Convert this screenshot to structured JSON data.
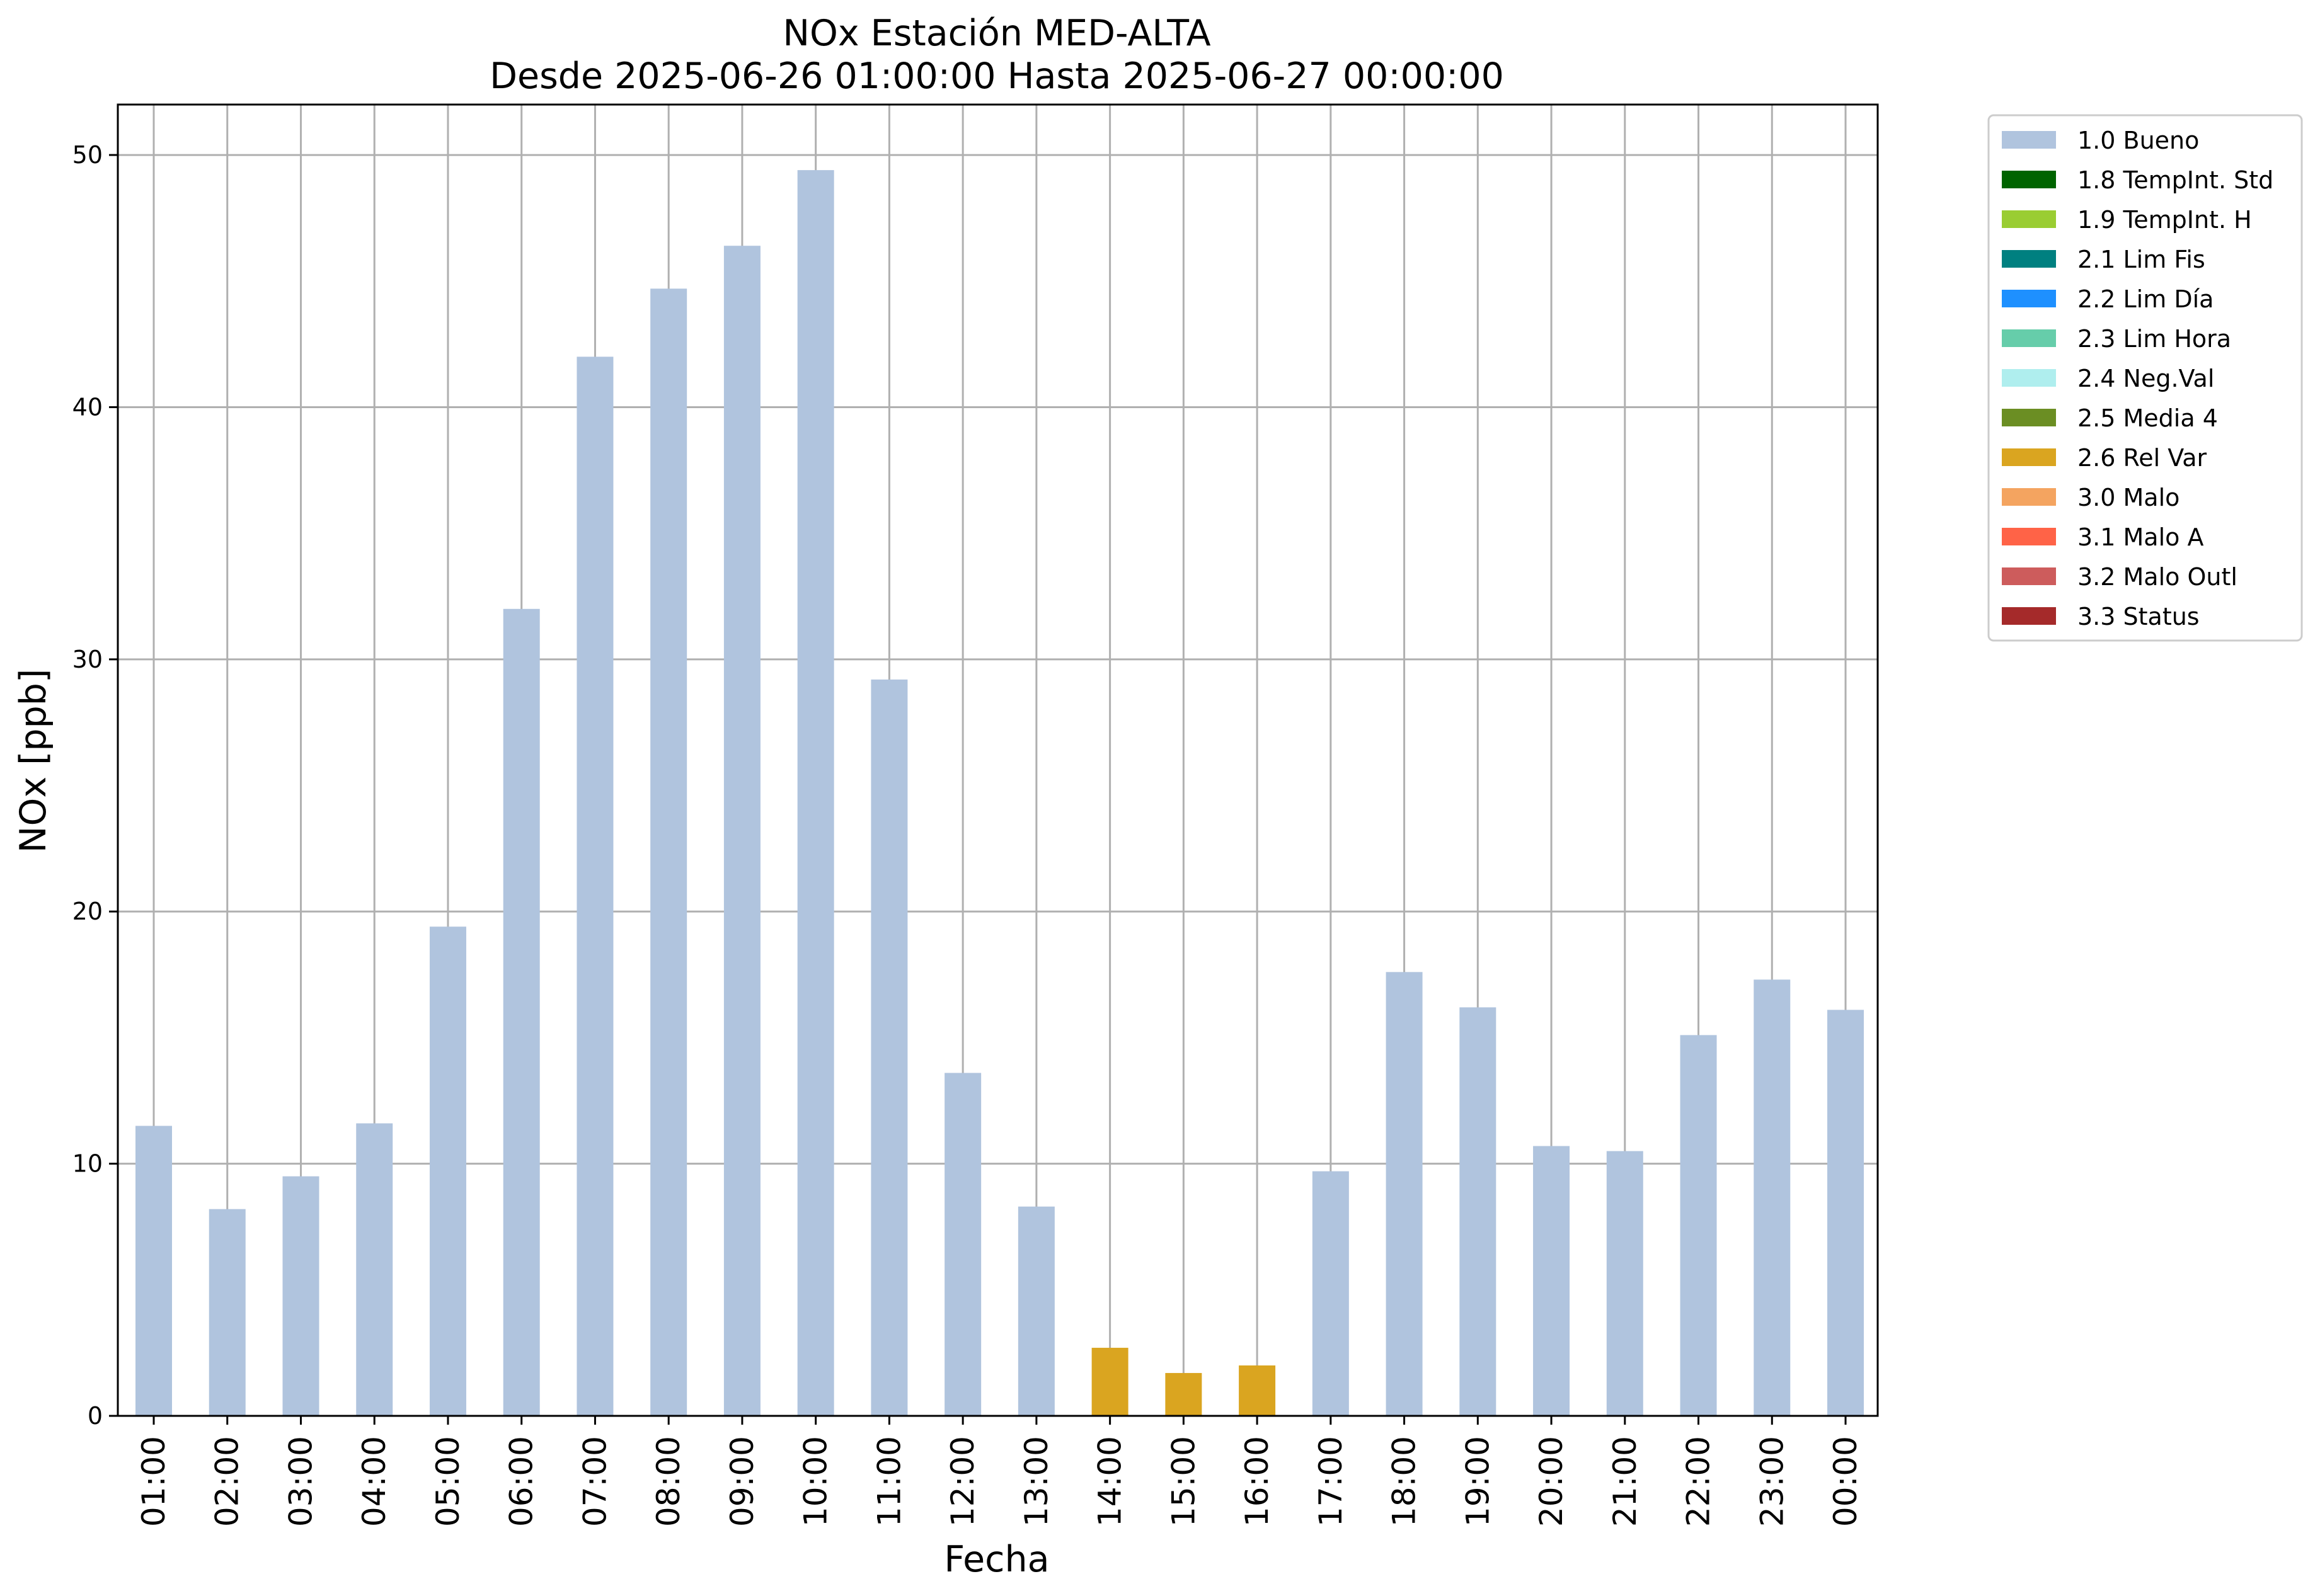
{
  "chart_data": {
    "type": "bar",
    "title": "NOx Estación MED-ALTA",
    "subtitle": "Desde 2025-06-26 01:00:00 Hasta 2025-06-27 00:00:00",
    "xlabel": "Fecha",
    "ylabel": "NOx [ppb]",
    "ylim": [
      0,
      52
    ],
    "yticks": [
      0,
      10,
      20,
      30,
      40,
      50
    ],
    "grid": true,
    "legend_position": "outside-top-right",
    "categories": [
      "01:00",
      "02:00",
      "03:00",
      "04:00",
      "05:00",
      "06:00",
      "07:00",
      "08:00",
      "09:00",
      "10:00",
      "11:00",
      "12:00",
      "13:00",
      "14:00",
      "15:00",
      "16:00",
      "17:00",
      "18:00",
      "19:00",
      "20:00",
      "21:00",
      "22:00",
      "23:00",
      "00:00"
    ],
    "values": [
      11.5,
      8.2,
      9.5,
      11.6,
      19.4,
      32.0,
      42.0,
      44.7,
      46.4,
      49.4,
      29.2,
      13.6,
      8.3,
      2.7,
      1.7,
      2.0,
      9.7,
      17.6,
      16.2,
      10.7,
      10.5,
      15.1,
      17.3,
      16.1
    ],
    "flags": [
      "1.0 Bueno",
      "1.0 Bueno",
      "1.0 Bueno",
      "1.0 Bueno",
      "1.0 Bueno",
      "1.0 Bueno",
      "1.0 Bueno",
      "1.0 Bueno",
      "1.0 Bueno",
      "1.0 Bueno",
      "1.0 Bueno",
      "1.0 Bueno",
      "1.0 Bueno",
      "2.6 Rel Var",
      "2.6 Rel Var",
      "2.6 Rel Var",
      "1.0 Bueno",
      "1.0 Bueno",
      "1.0 Bueno",
      "1.0 Bueno",
      "1.0 Bueno",
      "1.0 Bueno",
      "1.0 Bueno",
      "1.0 Bueno"
    ],
    "legend": [
      {
        "label": "1.0 Bueno",
        "color": "#b0c4de"
      },
      {
        "label": "1.8 TempInt. Std",
        "color": "#006400"
      },
      {
        "label": "1.9 TempInt. H",
        "color": "#9acd32"
      },
      {
        "label": "2.1 Lim Fis",
        "color": "#008080"
      },
      {
        "label": "2.2 Lim Día",
        "color": "#1e90ff"
      },
      {
        "label": "2.3 Lim Hora",
        "color": "#66cdaa"
      },
      {
        "label": "2.4 Neg.Val",
        "color": "#afeeee"
      },
      {
        "label": "2.5 Media 4",
        "color": "#6b8e23"
      },
      {
        "label": "2.6 Rel Var",
        "color": "#daa520"
      },
      {
        "label": "3.0 Malo",
        "color": "#f4a460"
      },
      {
        "label": "3.1 Malo A",
        "color": "#ff6347"
      },
      {
        "label": "3.2 Malo Outl",
        "color": "#cd5c5c"
      },
      {
        "label": "3.3 Status",
        "color": "#a52a2a"
      }
    ],
    "colors": {
      "grid": "#b0b0b0",
      "axes": "#000000"
    }
  }
}
